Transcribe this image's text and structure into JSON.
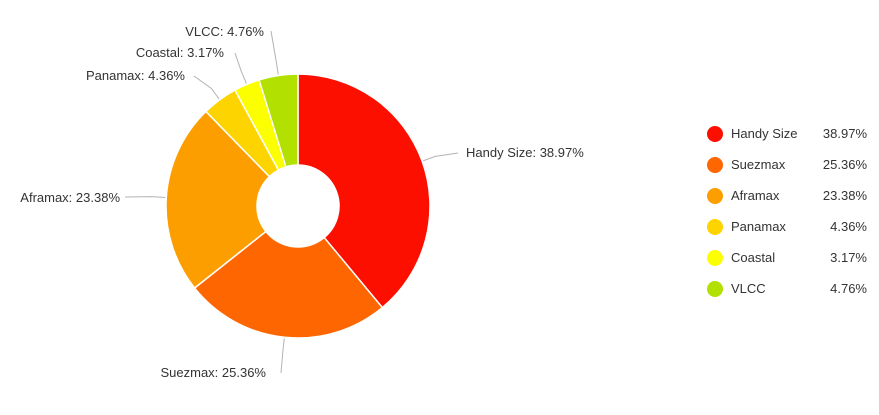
{
  "chart_data": {
    "type": "pie",
    "variant": "donut",
    "categories": [
      "Handy Size",
      "Suezmax",
      "Aframax",
      "Panamax",
      "Coastal",
      "VLCC"
    ],
    "values": [
      38.97,
      25.36,
      23.38,
      4.36,
      3.17,
      4.76
    ],
    "value_labels": [
      "38.97%",
      "25.36%",
      "23.38%",
      "4.36%",
      "3.17%",
      "4.76%"
    ],
    "slice_labels": [
      "Handy Size: 38.97%",
      "Suezmax: 25.36%",
      "Aframax: 23.38%",
      "Panamax: 4.36%",
      "Coastal: 3.17%",
      "VLCC: 4.76%"
    ],
    "colors": [
      "#fd0f00",
      "#fd6600",
      "#fd9e00",
      "#fdd300",
      "#fcff00",
      "#b2e000"
    ],
    "legend_position": "right"
  }
}
